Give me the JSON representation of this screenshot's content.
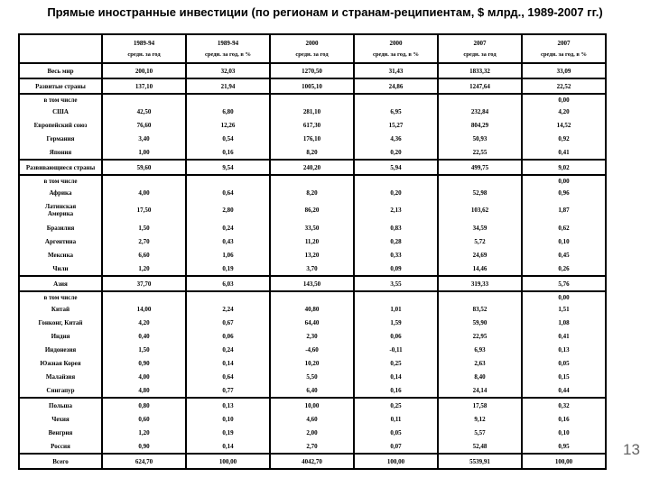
{
  "page": {
    "title": "Прямые иностранные инвестиции (по регионам и  странам-реципиентам, $ млрд., 1989-2007 гг.)",
    "page_number": "13"
  },
  "table": {
    "columns": [
      {
        "year": "1989-94",
        "sub": "средн. за год"
      },
      {
        "year": "1989-94",
        "sub": "средн. за год, в %"
      },
      {
        "year": "2000",
        "sub": "средн. за год"
      },
      {
        "year": "2000",
        "sub": "средн. за год, в %"
      },
      {
        "year": "2007",
        "sub": "средн. за год"
      },
      {
        "year": "2007",
        "sub": "средн. за год, в %"
      }
    ],
    "rows": [
      {
        "label": "Весь мир",
        "values": [
          "200,10",
          "32,03",
          "1270,50",
          "31,43",
          "1833,32",
          "33,09"
        ],
        "type": "data",
        "boxed": true
      },
      {
        "label": "Развитые страны",
        "values": [
          "137,10",
          "21,94",
          "1005,10",
          "24,86",
          "1247,64",
          "22,52"
        ],
        "type": "data",
        "boxed": true
      },
      {
        "label": "в том числе",
        "values": [
          "",
          "",
          "",
          "",
          "",
          "0,00"
        ],
        "type": "sub",
        "boxed": false
      },
      {
        "label": "США",
        "values": [
          "42,50",
          "6,80",
          "281,10",
          "6,95",
          "232,84",
          "4,20"
        ],
        "type": "data",
        "boxed": false
      },
      {
        "label": "Европейский союз",
        "values": [
          "76,60",
          "12,26",
          "617,30",
          "15,27",
          "804,29",
          "14,52"
        ],
        "type": "data",
        "boxed": false
      },
      {
        "label": "Германия",
        "values": [
          "3,40",
          "0,54",
          "176,10",
          "4,36",
          "50,93",
          "0,92"
        ],
        "type": "data",
        "boxed": false
      },
      {
        "label": "Япония",
        "values": [
          "1,00",
          "0,16",
          "8,20",
          "0,20",
          "22,55",
          "0,41"
        ],
        "type": "data",
        "boxed": true
      },
      {
        "label": "Развивающиеся страны",
        "values": [
          "59,60",
          "9,54",
          "240,20",
          "5,94",
          "499,75",
          "9,02"
        ],
        "type": "data",
        "boxed": true
      },
      {
        "label": "в том числе",
        "values": [
          "",
          "",
          "",
          "",
          "",
          "0,00"
        ],
        "type": "sub",
        "boxed": false
      },
      {
        "label": "Африка",
        "values": [
          "4,00",
          "0,64",
          "8,20",
          "0,20",
          "52,98",
          "0,96"
        ],
        "type": "data",
        "boxed": false
      },
      {
        "label": "Латинская\nАмерика",
        "values": [
          "17,50",
          "2,80",
          "86,20",
          "2,13",
          "103,62",
          "1,87"
        ],
        "type": "data",
        "tall": true,
        "boxed": false
      },
      {
        "label": "Бразилия",
        "values": [
          "1,50",
          "0,24",
          "33,50",
          "0,83",
          "34,59",
          "0,62"
        ],
        "type": "data",
        "boxed": false
      },
      {
        "label": "Аргентина",
        "values": [
          "2,70",
          "0,43",
          "11,20",
          "0,28",
          "5,72",
          "0,10"
        ],
        "type": "data",
        "boxed": false
      },
      {
        "label": "Мексика",
        "values": [
          "6,60",
          "1,06",
          "13,20",
          "0,33",
          "24,69",
          "0,45"
        ],
        "type": "data",
        "boxed": false
      },
      {
        "label": "Чили",
        "values": [
          "1,20",
          "0,19",
          "3,70",
          "0,09",
          "14,46",
          "0,26"
        ],
        "type": "data",
        "boxed": true
      },
      {
        "label": "Азия",
        "values": [
          "37,70",
          "6,03",
          "143,50",
          "3,55",
          "319,33",
          "5,76"
        ],
        "type": "data",
        "boxed": true
      },
      {
        "label": "в том числе",
        "values": [
          "",
          "",
          "",
          "",
          "",
          "0,00"
        ],
        "type": "sub",
        "boxed": false
      },
      {
        "label": "Китай",
        "values": [
          "14,00",
          "2,24",
          "40,80",
          "1,01",
          "83,52",
          "1,51"
        ],
        "type": "data",
        "boxed": false
      },
      {
        "label": "Гонконг, Китай",
        "values": [
          "4,20",
          "0,67",
          "64,40",
          "1,59",
          "59,90",
          "1,08"
        ],
        "type": "data",
        "boxed": false
      },
      {
        "label": "Индия",
        "values": [
          "0,40",
          "0,06",
          "2,30",
          "0,06",
          "22,95",
          "0,41"
        ],
        "type": "data",
        "boxed": false
      },
      {
        "label": "Индонезия",
        "values": [
          "1,50",
          "0,24",
          "-4,60",
          "-0,11",
          "6,93",
          "0,13"
        ],
        "type": "data",
        "boxed": false
      },
      {
        "label": "Южная Корея",
        "values": [
          "0,90",
          "0,14",
          "10,20",
          "0,25",
          "2,63",
          "0,05"
        ],
        "type": "data",
        "boxed": false
      },
      {
        "label": "Малайзия",
        "values": [
          "4,00",
          "0,64",
          "5,50",
          "0,14",
          "8,40",
          "0,15"
        ],
        "type": "data",
        "boxed": false
      },
      {
        "label": "Сингапур",
        "values": [
          "4,80",
          "0,77",
          "6,40",
          "0,16",
          "24,14",
          "0,44"
        ],
        "type": "data",
        "boxed": true
      },
      {
        "label": "Польша",
        "values": [
          "0,80",
          "0,13",
          "10,00",
          "0,25",
          "17,58",
          "0,32"
        ],
        "type": "data",
        "boxed": false
      },
      {
        "label": "Чехия",
        "values": [
          "0,60",
          "0,10",
          "4,60",
          "0,11",
          "9,12",
          "0,16"
        ],
        "type": "data",
        "boxed": false
      },
      {
        "label": "Венгрия",
        "values": [
          "1,20",
          "0,19",
          "2,00",
          "0,05",
          "5,57",
          "0,10"
        ],
        "type": "data",
        "boxed": false
      },
      {
        "label": "Россия",
        "values": [
          "0,90",
          "0,14",
          "2,70",
          "0,07",
          "52,48",
          "0,95"
        ],
        "type": "data",
        "boxed": true
      },
      {
        "label": "Всего",
        "values": [
          "624,70",
          "100,00",
          "4042,70",
          "100,00",
          "5539,91",
          "100,00"
        ],
        "type": "total",
        "boxed": false
      }
    ]
  }
}
